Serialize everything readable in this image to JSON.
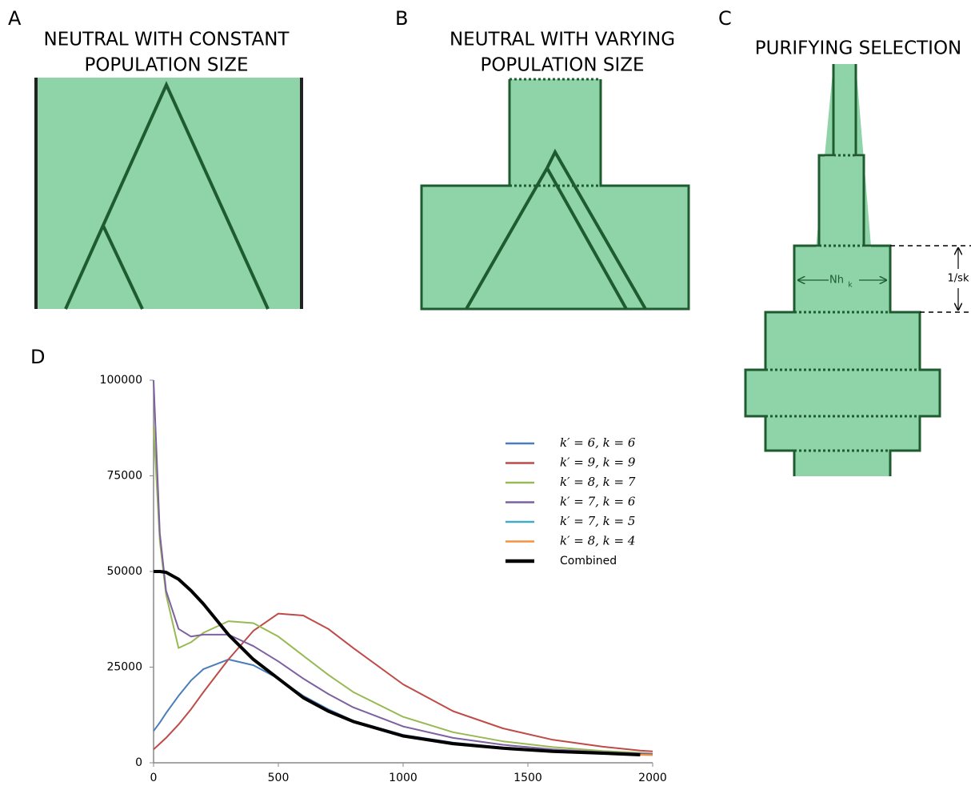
{
  "panels": {
    "A": {
      "letter": "A",
      "title": [
        "NEUTRAL WITH CONSTANT",
        "POPULATION SIZE"
      ]
    },
    "B": {
      "letter": "B",
      "title": [
        "NEUTRAL WITH VARYING",
        "POPULATION SIZE"
      ]
    },
    "C": {
      "letter": "C",
      "title": [
        "PURIFYING SELECTION"
      ],
      "width_label": "Nh",
      "width_label_sub": "k",
      "height_label": "1/sk"
    }
  },
  "chart_data": {
    "type": "line",
    "letter": "D",
    "x": [
      0,
      25,
      50,
      100,
      150,
      200,
      300,
      400,
      500,
      600,
      700,
      800,
      1000,
      1200,
      1400,
      1600,
      1800,
      1950,
      2000
    ],
    "xlim": [
      0,
      2000
    ],
    "xticks": [
      0,
      500,
      1000,
      1500,
      2000
    ],
    "ylim": [
      0,
      100000
    ],
    "yticks": [
      0,
      25000,
      50000,
      75000,
      100000
    ],
    "series": [
      {
        "name": "k′ = 6, k = 6",
        "color": "#4a7ebb",
        "values": [
          8300,
          10500,
          13000,
          17500,
          21500,
          24500,
          27000,
          25500,
          22000,
          17500,
          14000,
          11000,
          7300,
          5300,
          4000,
          3200,
          2600,
          2200,
          2100
        ]
      },
      {
        "name": "k′ = 9, k = 9",
        "color": "#be4b48",
        "values": [
          3500,
          5000,
          6500,
          10000,
          14000,
          18500,
          27000,
          34500,
          39000,
          38500,
          35000,
          30000,
          20500,
          13500,
          9000,
          6000,
          4200,
          3200,
          3000
        ]
      },
      {
        "name": "k′ = 8, k = 7",
        "color": "#98b954",
        "values": [
          88000,
          58000,
          44000,
          30000,
          31500,
          34000,
          37000,
          36500,
          33000,
          28000,
          23000,
          18500,
          12000,
          8000,
          5600,
          4100,
          3100,
          2600,
          2400
        ]
      },
      {
        "name": "k′ = 7, k = 6",
        "color": "#7d60a0",
        "values": [
          100000,
          60000,
          45000,
          35000,
          33000,
          33500,
          33500,
          30500,
          26500,
          22000,
          18000,
          14500,
          9500,
          6500,
          4700,
          3500,
          2800,
          2400,
          2300
        ]
      },
      {
        "name": "k′ = 7, k = 5",
        "color": "#46aac5",
        "values": [
          50000,
          50000,
          49800,
          48000,
          45000,
          41500,
          33500,
          27000,
          22000,
          17000,
          13500,
          10800,
          7000,
          5000,
          3800,
          3000,
          2500,
          2100,
          2000
        ]
      },
      {
        "name": "k′ = 8, k = 4",
        "color": "#f69240",
        "values": [
          50000,
          50000,
          49800,
          48000,
          45000,
          41500,
          33500,
          27000,
          22000,
          17000,
          13500,
          10800,
          7000,
          5000,
          3800,
          3000,
          2500,
          2100,
          2000
        ]
      },
      {
        "name": "Combined",
        "color": "#000000",
        "values": [
          50000,
          50000,
          49800,
          48000,
          45000,
          41500,
          33500,
          27000,
          22000,
          17000,
          13500,
          10800,
          7000,
          5000,
          3800,
          3000,
          2500,
          2100,
          null
        ]
      }
    ]
  }
}
